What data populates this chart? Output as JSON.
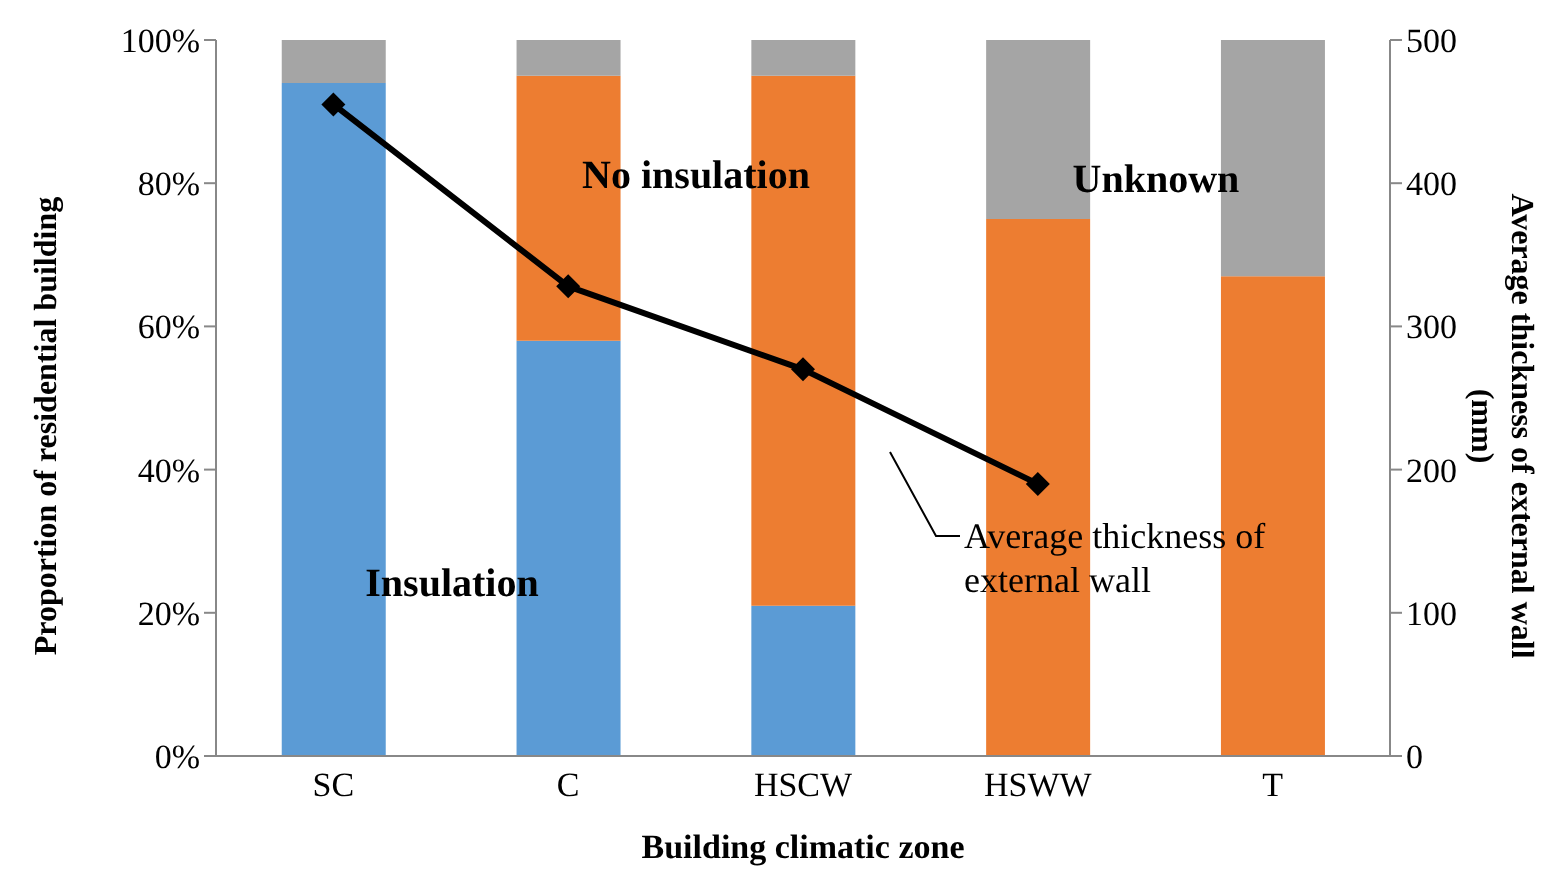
{
  "chart_data": {
    "type": "bar",
    "stacked": true,
    "categories": [
      "SC",
      "C",
      "HSCW",
      "HSWW",
      "T"
    ],
    "xlabel": "Building climatic zone",
    "ylabel": "Proportion of residential  building",
    "y2label": "Average thickness of external wall (mm)",
    "series": [
      {
        "name": "Insulation",
        "color": "#5b9bd5",
        "values": [
          94,
          58,
          21,
          0,
          0
        ]
      },
      {
        "name": "No insulation",
        "color": "#ed7d31",
        "values": [
          0,
          37,
          74,
          75,
          67
        ]
      },
      {
        "name": "Unknown",
        "color": "#a5a5a5",
        "values": [
          6,
          5,
          5,
          25,
          33
        ]
      },
      {
        "name": "Average thickness of external wall",
        "type": "line",
        "axis": "y2",
        "color": "#000000",
        "marker": "diamond",
        "values": [
          455,
          328,
          270,
          190,
          null
        ]
      }
    ],
    "ylim": [
      0,
      100
    ],
    "yticks": [
      {
        "value": 0,
        "label": "0%"
      },
      {
        "value": 20,
        "label": "20%"
      },
      {
        "value": 40,
        "label": "40%"
      },
      {
        "value": 60,
        "label": "60%"
      },
      {
        "value": 80,
        "label": "80%"
      },
      {
        "value": 100,
        "label": "100%"
      }
    ],
    "y2lim": [
      0,
      500
    ],
    "y2ticks": [
      0,
      100,
      200,
      300,
      400,
      500
    ]
  }
}
